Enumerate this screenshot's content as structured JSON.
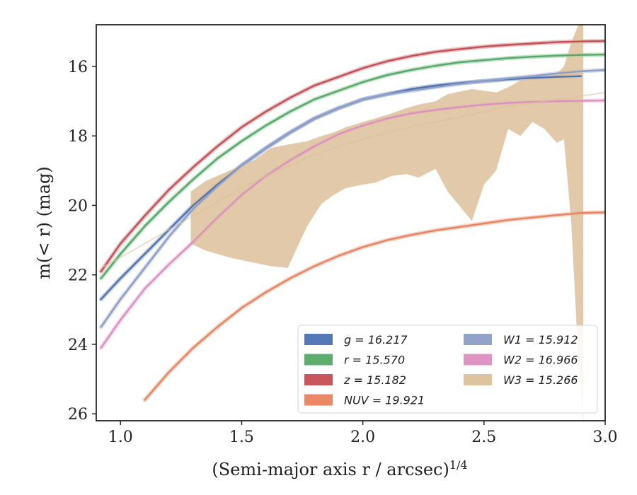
{
  "chart_data": {
    "type": "line",
    "title": "",
    "xlabel": "(Semi-major axis r / arcsec)",
    "xlabel_sup": "1/4",
    "ylabel": "m(< r) (mag)",
    "xlim": [
      0.9,
      3.0
    ],
    "ylim": [
      26.2,
      14.8
    ],
    "y_inverted": true,
    "grid": false,
    "legend_position": "lower-right",
    "x_ticks": [
      1.0,
      1.5,
      2.0,
      2.5,
      3.0
    ],
    "x_tick_labels": [
      "1.0",
      "1.5",
      "2.0",
      "2.5",
      "3.0"
    ],
    "y_ticks": [
      16,
      18,
      20,
      22,
      24,
      26
    ],
    "y_tick_labels": [
      "16",
      "18",
      "20",
      "22",
      "24",
      "26"
    ],
    "series": [
      {
        "name": "g = 16.217",
        "color": "#4c72b0",
        "x": [
          0.92,
          1.0,
          1.1,
          1.2,
          1.3,
          1.4,
          1.5,
          1.6,
          1.7,
          1.8,
          1.9,
          2.0,
          2.1,
          2.2,
          2.3,
          2.4,
          2.5,
          2.6,
          2.7,
          2.8,
          2.9
        ],
        "y": [
          22.7,
          22.1,
          21.4,
          20.7,
          20.0,
          19.4,
          18.85,
          18.35,
          17.9,
          17.5,
          17.2,
          16.95,
          16.8,
          16.65,
          16.55,
          16.48,
          16.42,
          16.37,
          16.33,
          16.3,
          16.28
        ]
      },
      {
        "name": "r = 15.570",
        "color": "#55a868",
        "x": [
          0.92,
          1.0,
          1.1,
          1.2,
          1.3,
          1.4,
          1.5,
          1.6,
          1.7,
          1.8,
          1.9,
          2.0,
          2.1,
          2.2,
          2.3,
          2.4,
          2.5,
          2.6,
          2.7,
          2.8,
          2.9,
          3.0
        ],
        "y": [
          22.1,
          21.4,
          20.6,
          19.9,
          19.25,
          18.65,
          18.15,
          17.7,
          17.3,
          16.95,
          16.7,
          16.45,
          16.25,
          16.1,
          15.98,
          15.88,
          15.82,
          15.76,
          15.72,
          15.69,
          15.67,
          15.66
        ]
      },
      {
        "name": "z = 15.182",
        "color": "#c44e52",
        "x": [
          0.92,
          1.0,
          1.1,
          1.2,
          1.3,
          1.4,
          1.5,
          1.6,
          1.7,
          1.8,
          1.9,
          2.0,
          2.1,
          2.2,
          2.3,
          2.4,
          2.5,
          2.6,
          2.7,
          2.8,
          2.9,
          3.0
        ],
        "y": [
          21.9,
          21.1,
          20.3,
          19.55,
          18.9,
          18.3,
          17.75,
          17.3,
          16.9,
          16.55,
          16.3,
          16.05,
          15.85,
          15.7,
          15.58,
          15.5,
          15.43,
          15.38,
          15.34,
          15.3,
          15.28,
          15.27
        ]
      },
      {
        "name": "NUV = 19.921",
        "color": "#e8825f",
        "x": [
          1.1,
          1.2,
          1.3,
          1.4,
          1.5,
          1.6,
          1.7,
          1.8,
          1.9,
          2.0,
          2.1,
          2.2,
          2.3,
          2.4,
          2.5,
          2.6,
          2.7,
          2.8,
          2.9,
          3.0
        ],
        "y": [
          25.6,
          24.8,
          24.1,
          23.5,
          22.95,
          22.5,
          22.1,
          21.75,
          21.45,
          21.2,
          21.0,
          20.85,
          20.72,
          20.62,
          20.52,
          20.42,
          20.35,
          20.28,
          20.22,
          20.2
        ]
      },
      {
        "name": "W1 = 15.912",
        "color": "#8c9dc6",
        "x": [
          0.92,
          1.0,
          1.1,
          1.2,
          1.3,
          1.4,
          1.5,
          1.6,
          1.7,
          1.8,
          1.9,
          2.0,
          2.1,
          2.2,
          2.3,
          2.4,
          2.5,
          2.6,
          2.7,
          2.8,
          2.9,
          3.0
        ],
        "y": [
          23.5,
          22.7,
          21.8,
          20.9,
          20.1,
          19.45,
          18.85,
          18.35,
          17.9,
          17.5,
          17.2,
          16.95,
          16.8,
          16.7,
          16.6,
          16.5,
          16.42,
          16.35,
          16.28,
          16.2,
          16.14,
          16.1
        ]
      },
      {
        "name": "W2 = 16.966",
        "color": "#dd8fc1",
        "x": [
          0.92,
          1.0,
          1.1,
          1.2,
          1.3,
          1.4,
          1.5,
          1.6,
          1.7,
          1.8,
          1.9,
          2.0,
          2.1,
          2.2,
          2.3,
          2.4,
          2.5,
          2.6,
          2.7,
          2.8,
          2.9,
          3.0
        ],
        "y": [
          24.1,
          23.3,
          22.4,
          21.7,
          21.05,
          20.35,
          19.7,
          19.15,
          18.7,
          18.3,
          17.95,
          17.7,
          17.5,
          17.35,
          17.25,
          17.17,
          17.1,
          17.05,
          17.02,
          17.0,
          16.99,
          16.98
        ]
      },
      {
        "name": "W3 = 15.266",
        "color": "#dcc09a",
        "x": [
          0.92,
          1.0,
          1.1,
          1.2,
          1.3,
          1.4,
          1.5,
          1.6,
          1.7,
          1.8,
          1.9,
          2.0,
          2.1,
          2.2,
          2.3,
          2.4,
          2.5,
          2.6,
          2.7,
          2.8,
          2.9,
          3.0
        ],
        "y": [
          21.8,
          21.5,
          21.1,
          20.7,
          20.3,
          19.9,
          19.5,
          19.15,
          18.85,
          18.55,
          18.3,
          18.1,
          17.9,
          17.75,
          17.6,
          17.45,
          17.3,
          17.15,
          17.05,
          16.95,
          16.85,
          16.75
        ],
        "band_x": [
          1.29,
          1.35,
          1.45,
          1.55,
          1.62,
          1.69,
          1.77,
          1.83,
          1.88,
          1.93,
          2.0,
          2.05,
          2.12,
          2.18,
          2.23,
          2.3,
          2.35,
          2.45,
          2.5,
          2.55,
          2.6,
          2.65,
          2.7,
          2.75,
          2.8,
          2.83,
          2.86,
          2.89,
          2.91
        ],
        "band_upper": [
          19.6,
          19.3,
          19.0,
          18.7,
          18.35,
          18.25,
          18.15,
          18.0,
          17.9,
          17.75,
          17.6,
          17.5,
          17.35,
          17.2,
          17.1,
          17.0,
          16.8,
          16.65,
          16.7,
          16.75,
          16.6,
          16.4,
          16.35,
          16.3,
          16.2,
          16.0,
          15.3,
          14.8,
          14.8
        ],
        "band_lower": [
          21.1,
          21.3,
          21.5,
          21.65,
          21.75,
          21.8,
          20.6,
          19.95,
          19.7,
          19.5,
          19.4,
          19.35,
          19.15,
          19.1,
          19.2,
          18.95,
          19.6,
          20.45,
          19.4,
          19.0,
          17.8,
          18.0,
          17.6,
          17.8,
          18.2,
          18.1,
          20.5,
          24.5,
          26.2
        ]
      }
    ]
  }
}
